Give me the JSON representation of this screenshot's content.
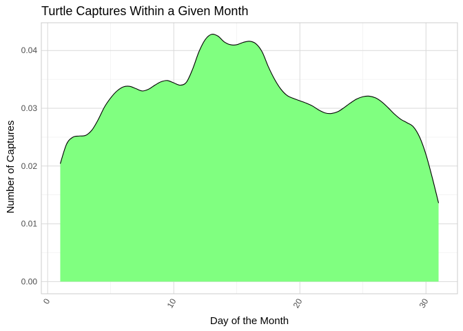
{
  "chart_data": {
    "type": "area",
    "title": "Turtle Captures Within a Given Month",
    "xlabel": "Day of the Month",
    "ylabel": "Number of Captures",
    "xlim": [
      -0.5,
      32.5
    ],
    "ylim": [
      -0.0021,
      0.0448
    ],
    "x_ticks": [
      0,
      10,
      20,
      30
    ],
    "x_tick_labels": [
      "0",
      "10",
      "20",
      "30"
    ],
    "x_tick_rotation": -60,
    "y_ticks": [
      0.0,
      0.01,
      0.02,
      0.03,
      0.04
    ],
    "y_tick_labels": [
      "0.00",
      "0.01",
      "0.02",
      "0.03",
      "0.04"
    ],
    "grid": true,
    "fill_color": "#80ff80",
    "line_color": "#000000",
    "series": [
      {
        "x": [
          1,
          1.5,
          2,
          2.5,
          3,
          3.5,
          4,
          4.5,
          5,
          5.5,
          6,
          6.5,
          7,
          7.5,
          8,
          8.5,
          9,
          9.5,
          10,
          10.5,
          11,
          11.5,
          12,
          12.5,
          13,
          13.5,
          14,
          14.5,
          15,
          15.5,
          16,
          16.5,
          17,
          17.5,
          18,
          18.5,
          19,
          19.5,
          20,
          20.5,
          21,
          21.5,
          22,
          22.5,
          23,
          23.5,
          24,
          24.5,
          25,
          25.5,
          26,
          26.5,
          27,
          27.5,
          28,
          28.5,
          29,
          29.5,
          30,
          30.5,
          31
        ],
        "y": [
          0.0204,
          0.0238,
          0.025,
          0.0252,
          0.0253,
          0.0262,
          0.028,
          0.0302,
          0.0318,
          0.033,
          0.0337,
          0.0338,
          0.0334,
          0.033,
          0.0333,
          0.034,
          0.0346,
          0.0348,
          0.0344,
          0.034,
          0.0345,
          0.0368,
          0.0398,
          0.0419,
          0.0428,
          0.0425,
          0.0415,
          0.041,
          0.041,
          0.0414,
          0.0416,
          0.0412,
          0.0398,
          0.0372,
          0.035,
          0.0333,
          0.0322,
          0.0317,
          0.0313,
          0.0309,
          0.0304,
          0.0297,
          0.0292,
          0.0291,
          0.0294,
          0.0301,
          0.0309,
          0.0316,
          0.032,
          0.0321,
          0.0318,
          0.0311,
          0.0301,
          0.029,
          0.0281,
          0.0275,
          0.0268,
          0.025,
          0.022,
          0.018,
          0.0136
        ]
      }
    ]
  }
}
